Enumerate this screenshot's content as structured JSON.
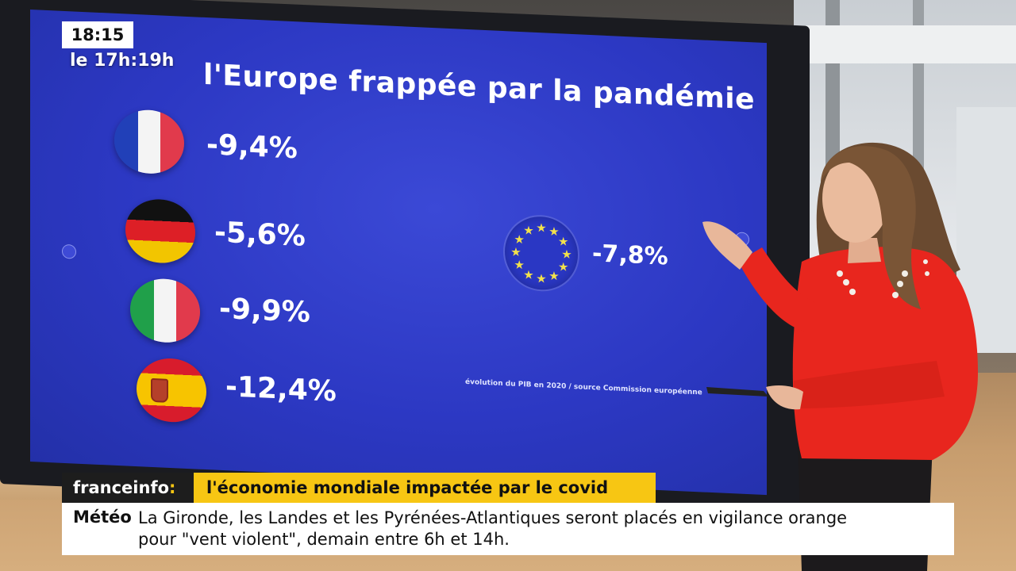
{
  "broadcast": {
    "clock": "18:15",
    "recorded_at": "le 17h:19h"
  },
  "screen": {
    "title": "l'Europe frappée par la pandémie",
    "countries": [
      {
        "flag": "france-flag-icon",
        "value": "-9,4%"
      },
      {
        "flag": "germany-flag-icon",
        "value": "-5,6%"
      },
      {
        "flag": "italy-flag-icon",
        "value": "-9,9%"
      },
      {
        "flag": "spain-flag-icon",
        "value": "-12,4%"
      }
    ],
    "eu": {
      "flag": "eu-flag-icon",
      "value": "-7,8%"
    },
    "source": "évolution du PIB en 2020 / source Commission européenne"
  },
  "lower_third": {
    "brand": "franceinfo",
    "brand_colon": ":",
    "headline": "l'économie mondiale impactée par le covid",
    "ticker_label": "Météo",
    "ticker_line1": "La Gironde, les Landes et les Pyrénées-Atlantiques seront placés en vigilance orange",
    "ticker_line2": "pour \"vent violent\", demain entre 6h et 14h."
  },
  "colors": {
    "brand_yellow": "#f7c613",
    "screen_blue": "#2c38c3",
    "sweater_red": "#e8261e"
  }
}
